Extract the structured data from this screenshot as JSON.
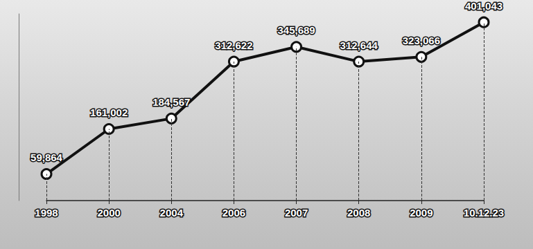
{
  "chart_data": {
    "type": "line",
    "categories": [
      "1998",
      "2000",
      "2004",
      "2006",
      "2007",
      "2008",
      "2009",
      "10.12.23"
    ],
    "values": [
      59864,
      161002,
      184567,
      312622,
      345689,
      312644,
      323066,
      401043
    ],
    "value_labels": [
      "59,864",
      "161,002",
      "184,567",
      "312,622",
      "345,689",
      "312,644",
      "323,066",
      "401,043"
    ],
    "color": "#111111",
    "marker": "circle",
    "ylim": [
      0,
      420000
    ],
    "grid": false,
    "data_labels": true,
    "tick_labels": "x"
  }
}
